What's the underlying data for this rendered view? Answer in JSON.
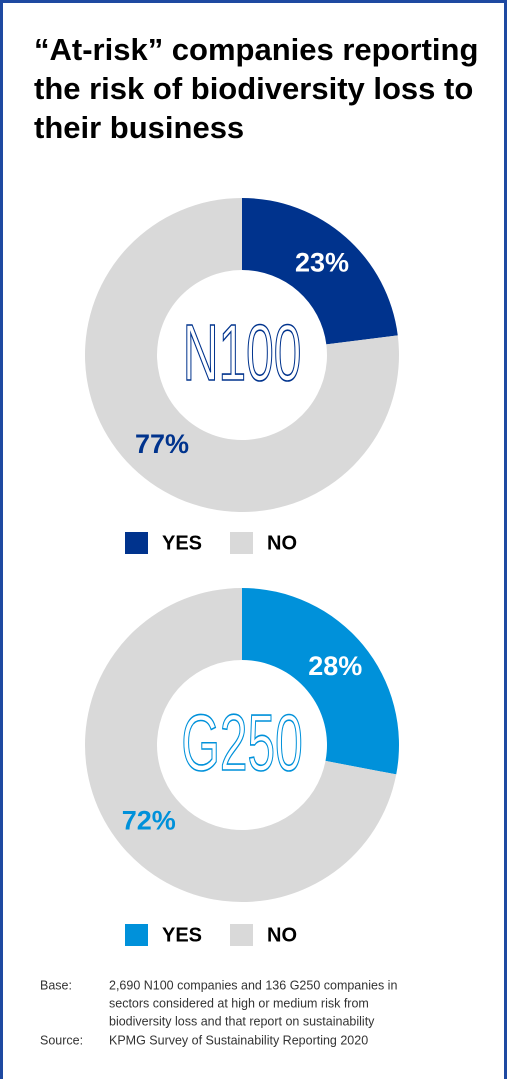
{
  "title": [
    "“At-risk” companies reporting",
    "the risk of biodiversity loss to",
    "their business"
  ],
  "chart_data": [
    {
      "type": "donut",
      "center_label": "N100",
      "categories": [
        "YES",
        "NO"
      ],
      "values": [
        23,
        77
      ],
      "value_labels": [
        "23%",
        "77%"
      ],
      "colors": [
        "#00338d",
        "#d9d9d9"
      ]
    },
    {
      "type": "donut",
      "center_label": "G250",
      "categories": [
        "YES",
        "NO"
      ],
      "values": [
        28,
        72
      ],
      "value_labels": [
        "28%",
        "72%"
      ],
      "colors": [
        "#0091da",
        "#d9d9d9"
      ]
    }
  ],
  "notes": {
    "base_label": "Base:",
    "base_lines": [
      "2,690 N100 companies and 136 G250 companies in",
      "sectors considered at high or medium risk from",
      "biodiversity loss and that report on sustainability"
    ],
    "source_label": "Source:",
    "source": "KPMG Survey of Sustainability Reporting 2020"
  }
}
